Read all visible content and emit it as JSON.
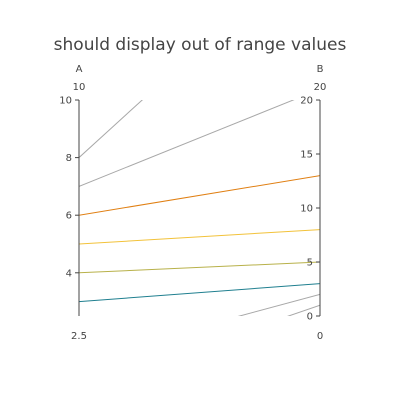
{
  "chart_data": {
    "type": "parcoords",
    "title": "should display out of range values",
    "dimensions": [
      {
        "label": "A",
        "range": [
          2.5,
          10
        ],
        "range_labels": {
          "min": "2.5",
          "max": "10"
        },
        "ticks": [
          4,
          6,
          8,
          10
        ]
      },
      {
        "label": "B",
        "range": [
          0,
          20
        ],
        "range_labels": {
          "min": "0",
          "max": "20"
        },
        "ticks": [
          0,
          5,
          10,
          15,
          20
        ]
      }
    ],
    "lines": [
      {
        "A": 8,
        "B": 35,
        "color": "#a8a8a8"
      },
      {
        "A": 7,
        "B": 21,
        "color": "#a8a8a8"
      },
      {
        "A": 6,
        "B": 13,
        "color": "#e07f12"
      },
      {
        "A": 5,
        "B": 8,
        "color": "#f2c23a"
      },
      {
        "A": 4,
        "B": 5,
        "color": "#b8b14a"
      },
      {
        "A": 3,
        "B": 3,
        "color": "#1f7f8f"
      },
      {
        "A": 1,
        "B": 2,
        "color": "#a8a8a8"
      },
      {
        "A": 0,
        "B": 1,
        "color": "#a8a8a8"
      }
    ],
    "grid": false
  }
}
